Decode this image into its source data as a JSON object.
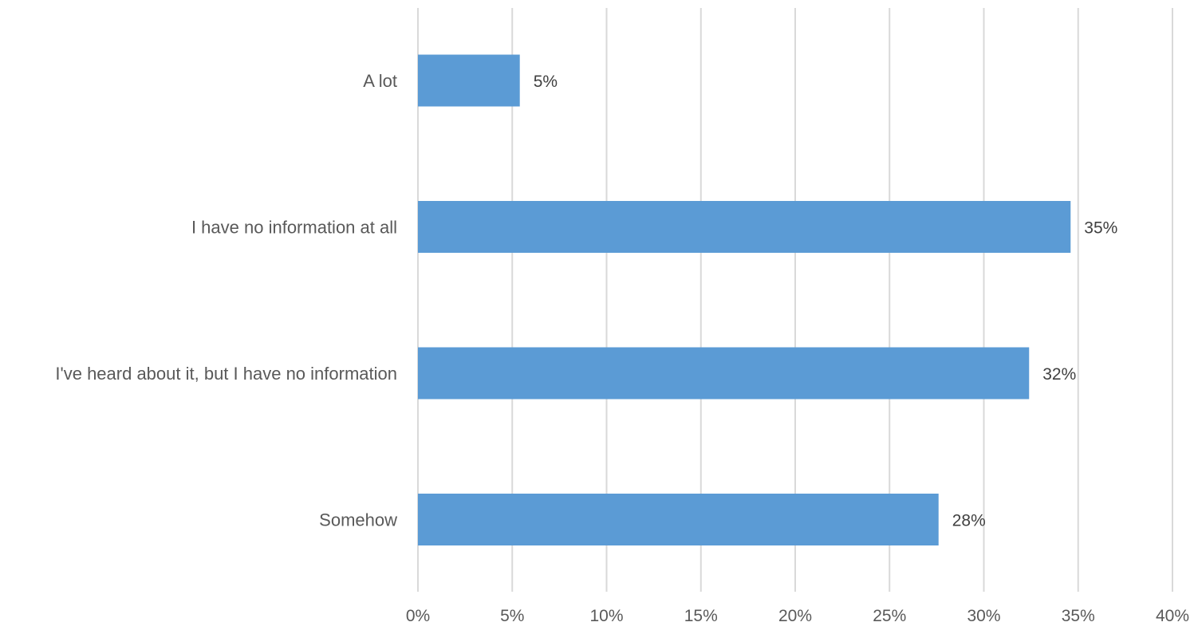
{
  "chart_data": {
    "type": "bar",
    "orientation": "horizontal",
    "title": "",
    "xlabel": "",
    "ylabel": "",
    "categories": [
      "A lot",
      "I have no information at all",
      "I've heard about it, but I have no information",
      "Somehow"
    ],
    "values": [
      5.4,
      34.6,
      32.4,
      27.6
    ],
    "data_labels": [
      "5%",
      "35%",
      "32%",
      "28%"
    ],
    "xlim": [
      0,
      40
    ],
    "x_ticks": [
      0,
      5,
      10,
      15,
      20,
      25,
      30,
      35,
      40
    ],
    "x_tick_labels": [
      "0%",
      "5%",
      "10%",
      "15%",
      "20%",
      "25%",
      "30%",
      "35%",
      "40%"
    ],
    "grid": "vertical",
    "legend": "none",
    "bar_color": "#5b9bd5"
  }
}
